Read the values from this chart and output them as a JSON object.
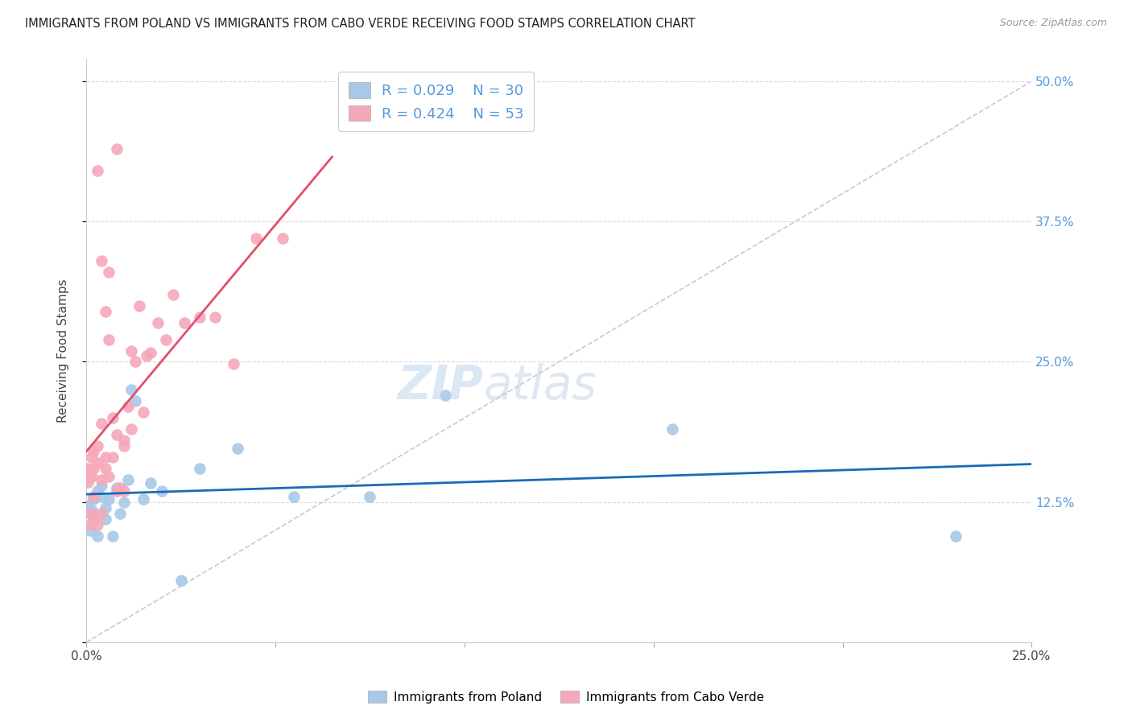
{
  "title": "IMMIGRANTS FROM POLAND VS IMMIGRANTS FROM CABO VERDE RECEIVING FOOD STAMPS CORRELATION CHART",
  "source": "Source: ZipAtlas.com",
  "xlabel_poland": "Immigrants from Poland",
  "xlabel_caboverde": "Immigrants from Cabo Verde",
  "ylabel": "Receiving Food Stamps",
  "xlim": [
    0.0,
    0.25
  ],
  "ylim": [
    0.0,
    0.52
  ],
  "yticks": [
    0.0,
    0.125,
    0.25,
    0.375,
    0.5
  ],
  "ytick_labels": [
    "",
    "12.5%",
    "25.0%",
    "37.5%",
    "50.0%"
  ],
  "xticks": [
    0.0,
    0.05,
    0.1,
    0.15,
    0.2,
    0.25
  ],
  "xtick_labels": [
    "0.0%",
    "",
    "",
    "",
    "",
    "25.0%"
  ],
  "poland_R": 0.029,
  "poland_N": 30,
  "caboverde_R": 0.424,
  "caboverde_N": 53,
  "poland_color": "#a8c8e8",
  "caboverde_color": "#f5a8b8",
  "poland_line_color": "#1a6bb5",
  "caboverde_line_color": "#e0506a",
  "diagonal_color": "#c8c8d8",
  "poland_scatter_x": [
    0.0005,
    0.001,
    0.0015,
    0.002,
    0.002,
    0.003,
    0.003,
    0.004,
    0.004,
    0.005,
    0.005,
    0.006,
    0.007,
    0.008,
    0.009,
    0.01,
    0.011,
    0.012,
    0.013,
    0.015,
    0.017,
    0.02,
    0.025,
    0.03,
    0.04,
    0.055,
    0.075,
    0.095,
    0.155,
    0.23
  ],
  "poland_scatter_y": [
    0.122,
    0.1,
    0.118,
    0.128,
    0.115,
    0.135,
    0.095,
    0.13,
    0.14,
    0.12,
    0.11,
    0.128,
    0.095,
    0.138,
    0.115,
    0.125,
    0.145,
    0.225,
    0.215,
    0.128,
    0.142,
    0.135,
    0.055,
    0.155,
    0.173,
    0.13,
    0.13,
    0.22,
    0.19,
    0.095
  ],
  "caboverde_scatter_x": [
    0.0003,
    0.0005,
    0.0008,
    0.001,
    0.001,
    0.0015,
    0.0015,
    0.002,
    0.002,
    0.002,
    0.003,
    0.003,
    0.003,
    0.004,
    0.004,
    0.004,
    0.005,
    0.005,
    0.005,
    0.006,
    0.006,
    0.007,
    0.007,
    0.008,
    0.008,
    0.009,
    0.01,
    0.01,
    0.011,
    0.012,
    0.013,
    0.014,
    0.015,
    0.016,
    0.017,
    0.019,
    0.021,
    0.023,
    0.026,
    0.03,
    0.034,
    0.039,
    0.045,
    0.052,
    0.0005,
    0.001,
    0.002,
    0.003,
    0.004,
    0.006,
    0.008,
    0.01,
    0.012
  ],
  "caboverde_scatter_y": [
    0.15,
    0.155,
    0.148,
    0.152,
    0.105,
    0.148,
    0.165,
    0.155,
    0.13,
    0.17,
    0.175,
    0.16,
    0.42,
    0.145,
    0.195,
    0.34,
    0.155,
    0.165,
    0.295,
    0.27,
    0.33,
    0.165,
    0.2,
    0.185,
    0.135,
    0.138,
    0.18,
    0.175,
    0.21,
    0.19,
    0.25,
    0.3,
    0.205,
    0.255,
    0.258,
    0.285,
    0.27,
    0.31,
    0.285,
    0.29,
    0.29,
    0.248,
    0.36,
    0.36,
    0.143,
    0.115,
    0.11,
    0.105,
    0.115,
    0.148,
    0.44,
    0.135,
    0.26
  ]
}
